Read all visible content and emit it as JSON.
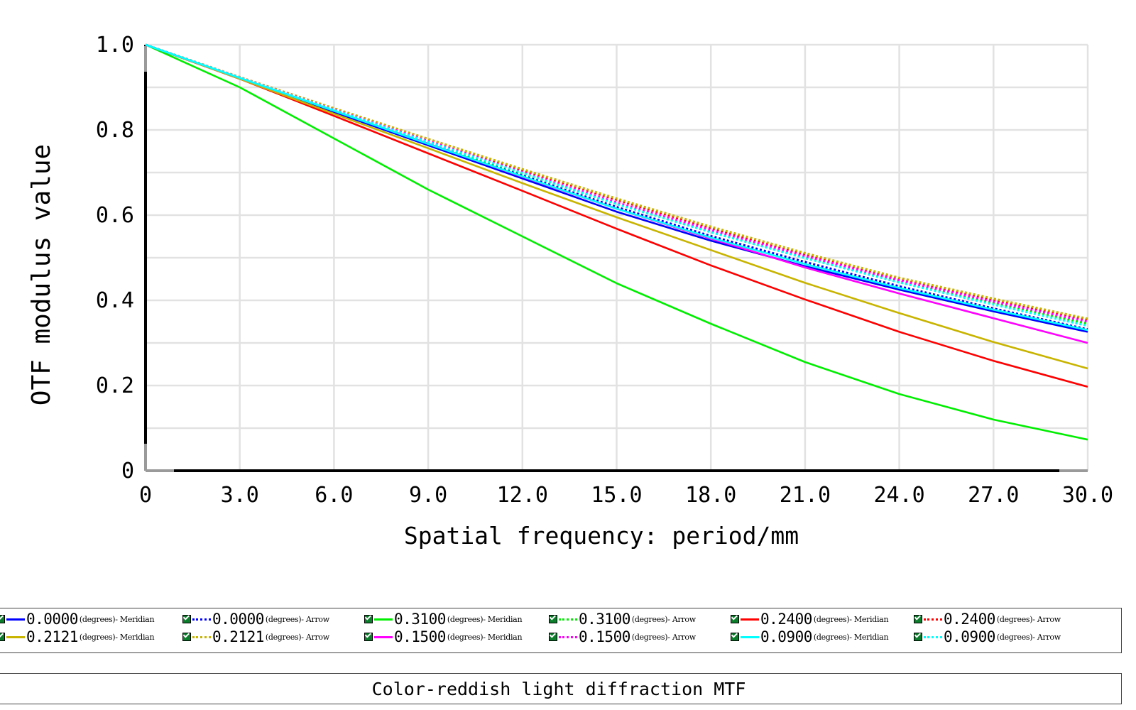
{
  "chart_data": {
    "type": "line",
    "xlabel": "Spatial frequency: period/mm",
    "ylabel": "OTF modulus value",
    "xlim": [
      0,
      30
    ],
    "ylim": [
      0,
      1
    ],
    "x_ticks": [
      "0",
      "3.0",
      "6.0",
      "9.0",
      "12.0",
      "15.0",
      "18.0",
      "21.0",
      "24.0",
      "27.0",
      "30.0"
    ],
    "y_ticks": [
      "0",
      "0.2",
      "0.4",
      "0.6",
      "0.8",
      "1.0"
    ],
    "grid": true,
    "x": [
      0,
      3,
      6,
      9,
      12,
      15,
      18,
      21,
      24,
      27,
      30
    ],
    "series": [
      {
        "name": "0.0000",
        "unit": "(degrees)- Meridian",
        "color": "#0000ff",
        "style": "solid",
        "values": [
          1.0,
          0.92,
          0.842,
          0.764,
          0.686,
          0.608,
          0.54,
          0.48,
          0.425,
          0.374,
          0.326
        ]
      },
      {
        "name": "0.0000",
        "unit": "(degrees)- Arrow",
        "color": "#0000ff",
        "style": "dotted",
        "values": [
          1.0,
          0.922,
          0.845,
          0.768,
          0.693,
          0.619,
          0.551,
          0.49,
          0.433,
          0.381,
          0.332
        ]
      },
      {
        "name": "0.3100",
        "unit": "(degrees)- Meridian",
        "color": "#00ee00",
        "style": "solid",
        "values": [
          1.0,
          0.9,
          0.78,
          0.66,
          0.55,
          0.44,
          0.345,
          0.255,
          0.18,
          0.12,
          0.073
        ]
      },
      {
        "name": "0.3100",
        "unit": "(degrees)- Arrow",
        "color": "#00ee00",
        "style": "dotted",
        "values": [
          1.0,
          0.922,
          0.845,
          0.77,
          0.698,
          0.626,
          0.56,
          0.5,
          0.443,
          0.393,
          0.345
        ]
      },
      {
        "name": "0.2400",
        "unit": "(degrees)- Meridian",
        "color": "#ff0000",
        "style": "solid",
        "values": [
          1.0,
          0.92,
          0.833,
          0.745,
          0.657,
          0.568,
          0.482,
          0.402,
          0.326,
          0.258,
          0.197
        ]
      },
      {
        "name": "0.2400",
        "unit": "(degrees)- Arrow",
        "color": "#ff0000",
        "style": "dotted",
        "values": [
          1.0,
          0.924,
          0.85,
          0.778,
          0.706,
          0.636,
          0.57,
          0.508,
          0.45,
          0.401,
          0.355
        ]
      },
      {
        "name": "0.2121",
        "unit": "(degrees)- Meridian",
        "color": "#c8b400",
        "style": "solid",
        "values": [
          1.0,
          0.92,
          0.838,
          0.757,
          0.675,
          0.595,
          0.518,
          0.441,
          0.37,
          0.302,
          0.24
        ]
      },
      {
        "name": "0.2121",
        "unit": "(degrees)- Arrow",
        "color": "#c8b400",
        "style": "dotted",
        "values": [
          1.0,
          0.924,
          0.851,
          0.779,
          0.708,
          0.639,
          0.573,
          0.511,
          0.453,
          0.404,
          0.357
        ]
      },
      {
        "name": "0.1500",
        "unit": "(degrees)- Meridian",
        "color": "#ff00ff",
        "style": "solid",
        "values": [
          1.0,
          0.922,
          0.845,
          0.768,
          0.69,
          0.615,
          0.545,
          0.477,
          0.416,
          0.358,
          0.3
        ]
      },
      {
        "name": "0.1500",
        "unit": "(degrees)- Arrow",
        "color": "#ff00ff",
        "style": "dotted",
        "values": [
          1.0,
          0.923,
          0.848,
          0.774,
          0.701,
          0.63,
          0.565,
          0.504,
          0.447,
          0.397,
          0.35
        ]
      },
      {
        "name": "0.0900",
        "unit": "(degrees)- Meridian",
        "color": "#00ffff",
        "style": "solid",
        "values": [
          1.0,
          0.922,
          0.845,
          0.767,
          0.691,
          0.615,
          0.547,
          0.485,
          0.429,
          0.378,
          0.33
        ]
      },
      {
        "name": "0.0900",
        "unit": "(degrees)- Arrow",
        "color": "#00ffff",
        "style": "dotted",
        "values": [
          1.0,
          0.923,
          0.847,
          0.772,
          0.699,
          0.626,
          0.56,
          0.499,
          0.442,
          0.39,
          0.34
        ]
      }
    ],
    "caption": "Color-reddish light diffraction MTF"
  }
}
